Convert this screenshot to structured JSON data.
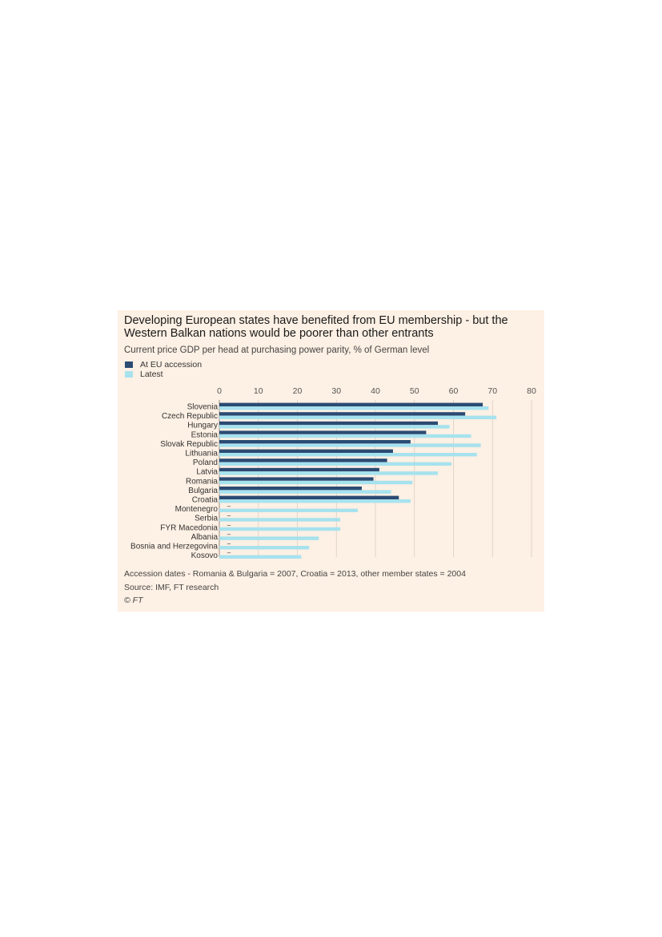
{
  "chart": {
    "title": "Developing European states have benefited from EU membership - but the Western Balkan nations would be poorer than other entrants",
    "subtitle": "Current price GDP per head at purchasing power parity, % of German level",
    "footnote": "Accession dates - Romania & Bulgaria = 2007, Croatia = 2013, other member states = 2004",
    "source": "Source: IMF, FT research",
    "copyright": "© FT",
    "colors": {
      "accession": "#2b4b73",
      "latest": "#a6e2ee",
      "background": "#fdf0e4",
      "gridline": "#d9cfc4"
    }
  },
  "chart_data": {
    "type": "bar",
    "orientation": "horizontal",
    "categories": [
      "Slovenia",
      "Czech Republic",
      "Hungary",
      "Estonia",
      "Slovak Republic",
      "Lithuania",
      "Poland",
      "Latvia",
      "Romania",
      "Bulgaria",
      "Croatia",
      "Montenegro",
      "Serbia",
      "FYR Macedonia",
      "Albania",
      "Bosnia and Herzegovina",
      "Kosovo"
    ],
    "series": [
      {
        "name": "At EU accession",
        "values": [
          67.5,
          63,
          56,
          53,
          49,
          44.5,
          43,
          41,
          39.5,
          36.5,
          46,
          null,
          null,
          null,
          null,
          null,
          null
        ]
      },
      {
        "name": "Latest",
        "values": [
          69,
          71,
          59,
          64.5,
          67,
          66,
          59.5,
          56,
          49.5,
          44,
          49,
          35.5,
          31,
          31,
          25.5,
          23,
          21
        ]
      }
    ],
    "missing_marker": "–",
    "xlim": [
      0,
      80
    ],
    "xticks": [
      0,
      10,
      20,
      30,
      40,
      50,
      60,
      70,
      80
    ],
    "grid": true,
    "legend": "top-left"
  }
}
